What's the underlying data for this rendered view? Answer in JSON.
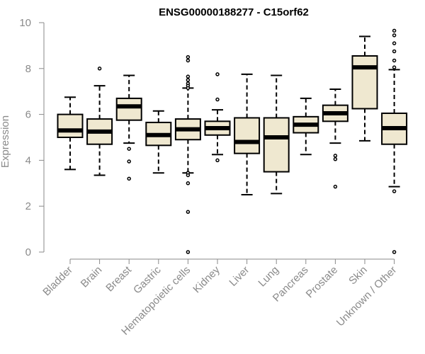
{
  "chart_data": {
    "type": "boxplot",
    "title": "ENSG00000188277 - C15orf62",
    "ylabel": "Expression",
    "xlabel": "",
    "ylim": [
      0,
      10
    ],
    "y_ticks": [
      0,
      2,
      4,
      6,
      8,
      10
    ],
    "grid": false,
    "legend": "none",
    "box_fill": "#efe8d0",
    "line_color": "#000000",
    "axis_color": "#8a8a8a",
    "categories": [
      "Bladder",
      "Brain",
      "Breast",
      "Gastric",
      "Hematopoietic cells",
      "Kidney",
      "Liver",
      "Lung",
      "Pancreas",
      "Prostate",
      "Skin",
      "Unknown / Other"
    ],
    "boxes": [
      {
        "category": "Bladder",
        "whisker_low": 3.6,
        "q1": 5.0,
        "median": 5.3,
        "q3": 6.0,
        "whisker_high": 6.75,
        "outliers": []
      },
      {
        "category": "Brain",
        "whisker_low": 3.35,
        "q1": 4.7,
        "median": 5.25,
        "q3": 5.8,
        "whisker_high": 7.25,
        "outliers": [
          8.0
        ]
      },
      {
        "category": "Breast",
        "whisker_low": 4.75,
        "q1": 5.75,
        "median": 6.35,
        "q3": 6.7,
        "whisker_high": 7.7,
        "outliers": [
          4.5,
          3.95,
          3.2
        ]
      },
      {
        "category": "Gastric",
        "whisker_low": 3.45,
        "q1": 4.65,
        "median": 5.1,
        "q3": 5.65,
        "whisker_high": 6.15,
        "outliers": []
      },
      {
        "category": "Hematopoietic cells",
        "whisker_low": 3.45,
        "q1": 4.9,
        "median": 5.35,
        "q3": 5.8,
        "whisker_high": 7.15,
        "outliers": [
          8.5,
          8.35,
          7.65,
          7.5,
          7.35,
          7.25,
          7.15,
          3.45,
          3.35,
          3.0,
          1.75,
          0.0
        ]
      },
      {
        "category": "Kidney",
        "whisker_low": 4.25,
        "q1": 5.1,
        "median": 5.4,
        "q3": 5.7,
        "whisker_high": 6.2,
        "outliers": [
          7.75,
          6.65,
          4.0
        ]
      },
      {
        "category": "Liver",
        "whisker_low": 2.5,
        "q1": 4.3,
        "median": 4.8,
        "q3": 5.85,
        "whisker_high": 7.75,
        "outliers": []
      },
      {
        "category": "Lung",
        "whisker_low": 2.55,
        "q1": 3.5,
        "median": 5.0,
        "q3": 5.85,
        "whisker_high": 7.7,
        "outliers": []
      },
      {
        "category": "Pancreas",
        "whisker_low": 4.25,
        "q1": 5.2,
        "median": 5.55,
        "q3": 5.9,
        "whisker_high": 6.7,
        "outliers": []
      },
      {
        "category": "Prostate",
        "whisker_low": 4.75,
        "q1": 5.7,
        "median": 6.05,
        "q3": 6.4,
        "whisker_high": 7.1,
        "outliers": [
          4.2,
          4.05,
          2.85
        ]
      },
      {
        "category": "Skin",
        "whisker_low": 4.85,
        "q1": 6.25,
        "median": 8.05,
        "q3": 8.55,
        "whisker_high": 9.4,
        "outliers": []
      },
      {
        "category": "Unknown / Other",
        "whisker_low": 2.85,
        "q1": 4.7,
        "median": 5.4,
        "q3": 6.05,
        "whisker_high": 7.95,
        "outliers": [
          9.65,
          9.45,
          9.1,
          8.75,
          8.35,
          8.05,
          2.65,
          0.0
        ]
      }
    ]
  }
}
